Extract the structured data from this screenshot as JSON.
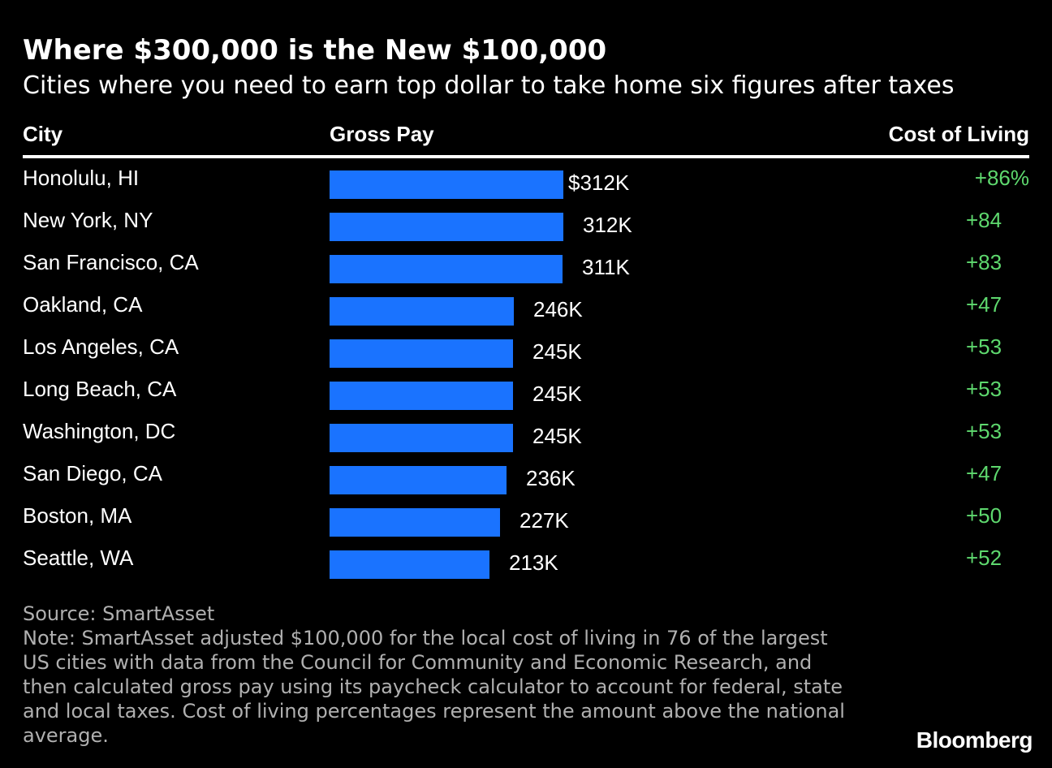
{
  "title": "Where $300,000 is the New $100,000",
  "subtitle": "Cities where you need to earn top dollar to take home six figures after taxes",
  "headers": {
    "city": "City",
    "gross": "Gross Pay",
    "col": "Cost of Living"
  },
  "colors": {
    "bar": "#1a73ff",
    "cost_of_living": "#5ed86e",
    "background": "#000000"
  },
  "chart_data": {
    "type": "bar",
    "orientation": "horizontal",
    "categories": [
      "Honolulu, HI",
      "New York, NY",
      "San Francisco, CA",
      "Oakland, CA",
      "Los Angeles, CA",
      "Long Beach, CA",
      "Washington, DC",
      "San Diego, CA",
      "Boston, MA",
      "Seattle, WA"
    ],
    "values": [
      312,
      312,
      311,
      246,
      245,
      245,
      245,
      236,
      227,
      213
    ],
    "unit": "K",
    "value_labels": [
      "$312K",
      "312K",
      "311K",
      "246K",
      "245K",
      "245K",
      "245K",
      "236K",
      "227K",
      "213K"
    ],
    "cost_of_living": [
      86,
      84,
      83,
      47,
      53,
      53,
      53,
      47,
      50,
      52
    ],
    "cost_of_living_labels": [
      "+86%",
      "+84",
      "+83",
      "+47",
      "+53",
      "+53",
      "+53",
      "+47",
      "+50",
      "+52"
    ]
  },
  "footer": {
    "source": "Source: SmartAsset",
    "note": "Note: SmartAsset adjusted $100,000 for the local cost of living in 76 of the largest US cities with data from the Council for Community and Economic Research, and then calculated gross pay using its paycheck calculator to account for federal, state and local taxes. Cost of living percentages represent the amount above the national average.",
    "logo": "Bloomberg"
  }
}
